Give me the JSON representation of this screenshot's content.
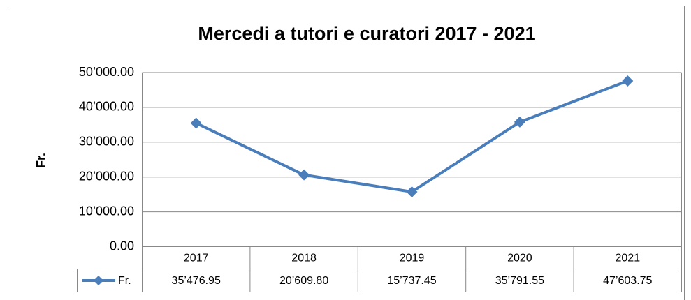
{
  "chart_data": {
    "type": "line",
    "title": "Mercedi a tutori e curatori  2017 - 2021",
    "y_label": "Fr.",
    "categories": [
      "2017",
      "2018",
      "2019",
      "2020",
      "2021"
    ],
    "series": [
      {
        "name": "Fr.",
        "color": "#4a7ebb",
        "values": [
          35476.95,
          20609.8,
          15737.45,
          35791.55,
          47603.75
        ],
        "value_labels": [
          "35’476.95",
          "20’609.80",
          "15’737.45",
          "35’791.55",
          "47’603.75"
        ]
      }
    ],
    "ylim": [
      0,
      50000
    ],
    "yticks": [
      {
        "value": 0,
        "label": "0.00"
      },
      {
        "value": 10000,
        "label": "10’000.00"
      },
      {
        "value": 20000,
        "label": "20’000.00"
      },
      {
        "value": 30000,
        "label": "30’000.00"
      },
      {
        "value": 40000,
        "label": "40’000.00"
      },
      {
        "value": 50000,
        "label": "50’000.00"
      }
    ],
    "grid": true,
    "data_table": true
  }
}
